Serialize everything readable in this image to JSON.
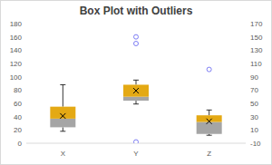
{
  "chart_data": {
    "type": "box",
    "title": "Box Plot with Outliers",
    "categories": [
      "X",
      "Y",
      "Z"
    ],
    "min": [
      18,
      59,
      12
    ],
    "q1": [
      24,
      64,
      14
    ],
    "median": [
      37,
      70,
      32
    ],
    "q3": [
      55,
      88,
      42
    ],
    "max": [
      88,
      95,
      50
    ],
    "mean": [
      41,
      79,
      33
    ],
    "outliers": [
      [],
      [
        160,
        150,
        2
      ],
      [
        111
      ]
    ],
    "colors": [
      "#a5a5a5",
      "#e4a914"
    ],
    "marker": "circle",
    "ylim": [
      0,
      180
    ],
    "yticks": [
      0,
      20,
      40,
      60,
      80,
      100,
      120,
      140,
      160,
      180
    ],
    "y2lim": [
      -10,
      170
    ],
    "y2ticks": [
      -10,
      10,
      30,
      50,
      70,
      90,
      110,
      130,
      150,
      170
    ],
    "grid": false
  }
}
